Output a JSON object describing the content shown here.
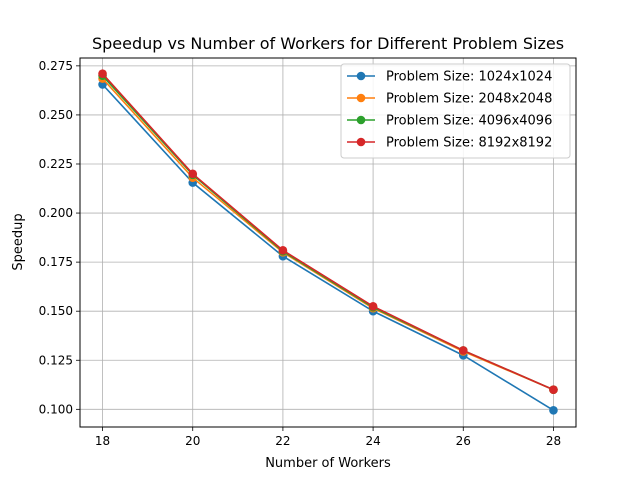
{
  "chart_data": {
    "type": "line",
    "title": "Speedup vs Number of Workers for Different Problem Sizes",
    "xlabel": "Number of Workers",
    "ylabel": "Speedup",
    "x": [
      18,
      20,
      22,
      24,
      26,
      28
    ],
    "xlim": [
      17.5,
      28.5
    ],
    "ylim": [
      0.091,
      0.279
    ],
    "xticks": [
      "18",
      "20",
      "22",
      "24",
      "26",
      "28"
    ],
    "yticks": [
      "0.100",
      "0.125",
      "0.150",
      "0.175",
      "0.200",
      "0.225",
      "0.250",
      "0.275"
    ],
    "grid": true,
    "legend_position": "top-right",
    "series": [
      {
        "name": "Problem Size: 1024x1024",
        "color": "#1f77b4",
        "values": [
          0.2655,
          0.2155,
          0.178,
          0.15,
          0.1275,
          0.0995
        ]
      },
      {
        "name": "Problem Size: 2048x2048",
        "color": "#ff7f0e",
        "values": [
          0.2685,
          0.218,
          0.18,
          0.1515,
          0.1295,
          0.11
        ]
      },
      {
        "name": "Problem Size: 4096x4096",
        "color": "#2ca02c",
        "values": [
          0.27,
          0.2195,
          0.1805,
          0.152,
          0.13,
          0.11
        ]
      },
      {
        "name": "Problem Size: 8192x8192",
        "color": "#d62728",
        "values": [
          0.271,
          0.22,
          0.181,
          0.1525,
          0.13,
          0.11
        ]
      }
    ]
  }
}
